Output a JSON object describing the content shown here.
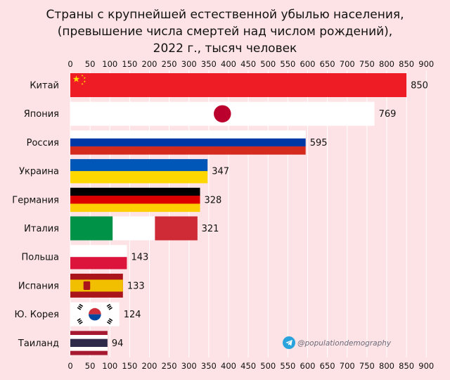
{
  "chart_data": {
    "type": "bar",
    "orientation": "horizontal",
    "title_lines": [
      "Страны с крупнейшей естественной убылью населения,",
      "(превышение числа смертей над числом рождений),",
      "2022 г., тысяч человек"
    ],
    "categories": [
      "Китай",
      "Япония",
      "Россия",
      "Украина",
      "Германия",
      "Италия",
      "Польша",
      "Испания",
      "Ю. Корея",
      "Таиланд"
    ],
    "values": [
      850,
      769,
      595,
      347,
      328,
      321,
      143,
      133,
      124,
      94
    ],
    "value_labels": [
      "850",
      "769",
      "595",
      "347",
      "328",
      "321",
      "143",
      "133",
      "124",
      "94"
    ],
    "xlim": [
      0,
      900
    ],
    "xticks": [
      "0",
      "50",
      "100",
      "150",
      "200",
      "250",
      "300",
      "350",
      "400",
      "450",
      "500",
      "550",
      "600",
      "650",
      "700",
      "750",
      "800",
      "850",
      "900"
    ],
    "xtick_values": [
      0,
      50,
      100,
      150,
      200,
      250,
      300,
      350,
      400,
      450,
      500,
      550,
      600,
      650,
      700,
      750,
      800,
      850,
      900
    ],
    "axis_position": "top and bottom",
    "grid": true,
    "bar_fills": [
      "flag-china",
      "flag-japan",
      "flag-russia",
      "flag-ukraine",
      "flag-germany",
      "flag-italy",
      "flag-poland",
      "flag-spain",
      "flag-south-korea",
      "flag-thailand"
    ]
  },
  "watermark": {
    "icon": "telegram-icon",
    "handle": "@populationdemography"
  },
  "colors": {
    "background": "#fde3e5",
    "china_red": "#ee1c25",
    "china_yellow": "#ffde00",
    "japan_red": "#bc002d",
    "russia_blue": "#0039a6",
    "russia_red": "#d52b1e",
    "ukraine_blue": "#0057b7",
    "ukraine_yellow": "#ffd700",
    "germany_black": "#000000",
    "germany_red": "#dd0000",
    "germany_gold": "#ffce00",
    "italy_green": "#009246",
    "italy_red": "#ce2b37",
    "poland_red": "#dc143c",
    "spain_red": "#aa151b",
    "spain_yellow": "#f1bf00",
    "korea_red": "#cd2e3a",
    "korea_blue": "#0047a0",
    "thailand_red": "#a51931",
    "thailand_blue": "#2d2a4a",
    "telegram": "#2aa3dd"
  }
}
